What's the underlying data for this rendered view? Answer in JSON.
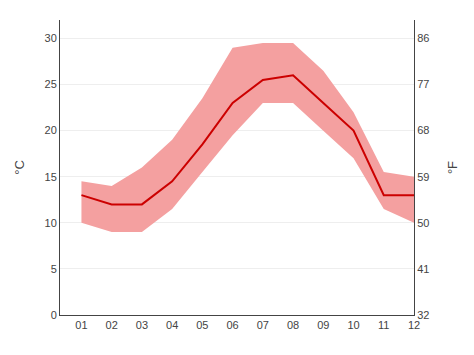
{
  "chart_data": {
    "type": "line",
    "categories": [
      "01",
      "02",
      "03",
      "04",
      "05",
      "06",
      "07",
      "08",
      "09",
      "10",
      "11",
      "12"
    ],
    "series": [
      {
        "type": "band",
        "color": "#f4a0a0",
        "lower": [
          10.0,
          9.0,
          9.0,
          11.5,
          15.5,
          19.5,
          23.0,
          23.0,
          20.0,
          17.0,
          11.5,
          10.0
        ],
        "upper": [
          14.5,
          14.0,
          16.0,
          19.0,
          23.5,
          29.0,
          29.5,
          29.5,
          26.5,
          22.0,
          15.5,
          15.0
        ]
      },
      {
        "type": "line",
        "color": "#cc0000",
        "values": [
          13.0,
          12.0,
          12.0,
          14.5,
          18.5,
          23.0,
          25.5,
          26.0,
          23.0,
          20.0,
          13.0,
          13.0
        ]
      }
    ],
    "ylim": [
      0,
      32
    ],
    "yticks": [
      0,
      5,
      10,
      15,
      20,
      25,
      30
    ],
    "ylabel": "°C",
    "y2lim": [
      32,
      89.6
    ],
    "y2ticks": [
      32,
      41,
      50,
      59,
      68,
      77,
      86
    ],
    "y2label": "°F",
    "grid": true
  }
}
